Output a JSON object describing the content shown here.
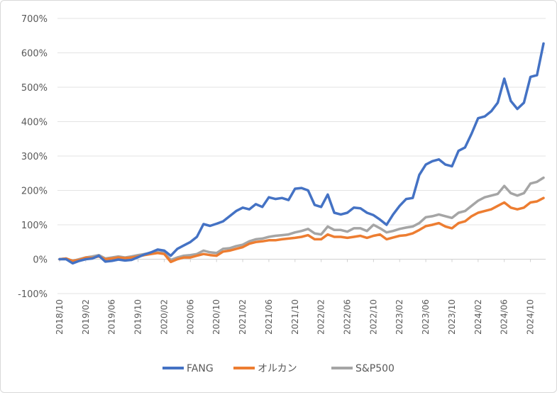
{
  "chart_data": {
    "type": "line",
    "title": "",
    "xlabel": "",
    "ylabel": "",
    "ylim": [
      -100,
      700
    ],
    "y_ticks": [
      -100,
      0,
      100,
      200,
      300,
      400,
      500,
      600,
      700
    ],
    "y_tick_labels": [
      "-100%",
      "0%",
      "100%",
      "200%",
      "300%",
      "400%",
      "500%",
      "600%",
      "700%"
    ],
    "x_tick_labels": [
      "2018/10",
      "2019/02",
      "2019/06",
      "2019/10",
      "2020/02",
      "2020/06",
      "2020/10",
      "2021/02",
      "2021/06",
      "2021/10",
      "2022/02",
      "2022/06",
      "2022/10",
      "2023/02",
      "2023/06",
      "2023/10",
      "2024/02",
      "2024/06",
      "2024/10"
    ],
    "x_tick_step": 4,
    "grid": true,
    "legend_position": "bottom",
    "series": [
      {
        "name": "FANG",
        "color": "#4472C4",
        "values": [
          0,
          0,
          -12,
          -5,
          0,
          2,
          10,
          -7,
          -5,
          -1,
          -4,
          -2,
          6,
          14,
          20,
          28,
          25,
          10,
          30,
          40,
          50,
          65,
          102,
          97,
          103,
          110,
          125,
          140,
          150,
          145,
          160,
          152,
          180,
          175,
          178,
          172,
          205,
          207,
          200,
          158,
          152,
          188,
          135,
          130,
          135,
          150,
          148,
          135,
          128,
          115,
          100,
          130,
          155,
          175,
          178,
          245,
          275,
          285,
          290,
          275,
          270,
          315,
          325,
          365,
          410,
          415,
          430,
          455,
          525,
          460,
          437,
          455,
          530,
          535,
          627
        ]
      },
      {
        "name": "オルカン",
        "color": "#ED7D31",
        "values": [
          0,
          2,
          -5,
          -2,
          5,
          4,
          8,
          0,
          2,
          5,
          3,
          5,
          8,
          12,
          15,
          18,
          15,
          -8,
          0,
          5,
          5,
          10,
          15,
          12,
          10,
          22,
          25,
          30,
          35,
          45,
          50,
          52,
          55,
          55,
          58,
          60,
          62,
          65,
          70,
          58,
          58,
          72,
          65,
          65,
          62,
          65,
          68,
          62,
          68,
          72,
          58,
          63,
          68,
          70,
          75,
          85,
          96,
          100,
          105,
          95,
          90,
          105,
          110,
          125,
          135,
          140,
          145,
          155,
          165,
          150,
          145,
          150,
          165,
          168,
          178
        ]
      },
      {
        "name": "S&P500",
        "color": "#A5A5A5",
        "values": [
          0,
          2,
          -5,
          0,
          5,
          8,
          12,
          2,
          5,
          8,
          5,
          8,
          12,
          15,
          18,
          20,
          18,
          -2,
          5,
          10,
          12,
          15,
          25,
          20,
          18,
          30,
          32,
          38,
          42,
          52,
          58,
          60,
          65,
          68,
          70,
          72,
          78,
          82,
          88,
          75,
          72,
          95,
          85,
          85,
          80,
          90,
          90,
          82,
          100,
          90,
          78,
          82,
          88,
          92,
          95,
          105,
          122,
          125,
          130,
          125,
          120,
          135,
          140,
          155,
          170,
          180,
          185,
          190,
          213,
          192,
          185,
          192,
          220,
          225,
          237
        ]
      }
    ]
  }
}
